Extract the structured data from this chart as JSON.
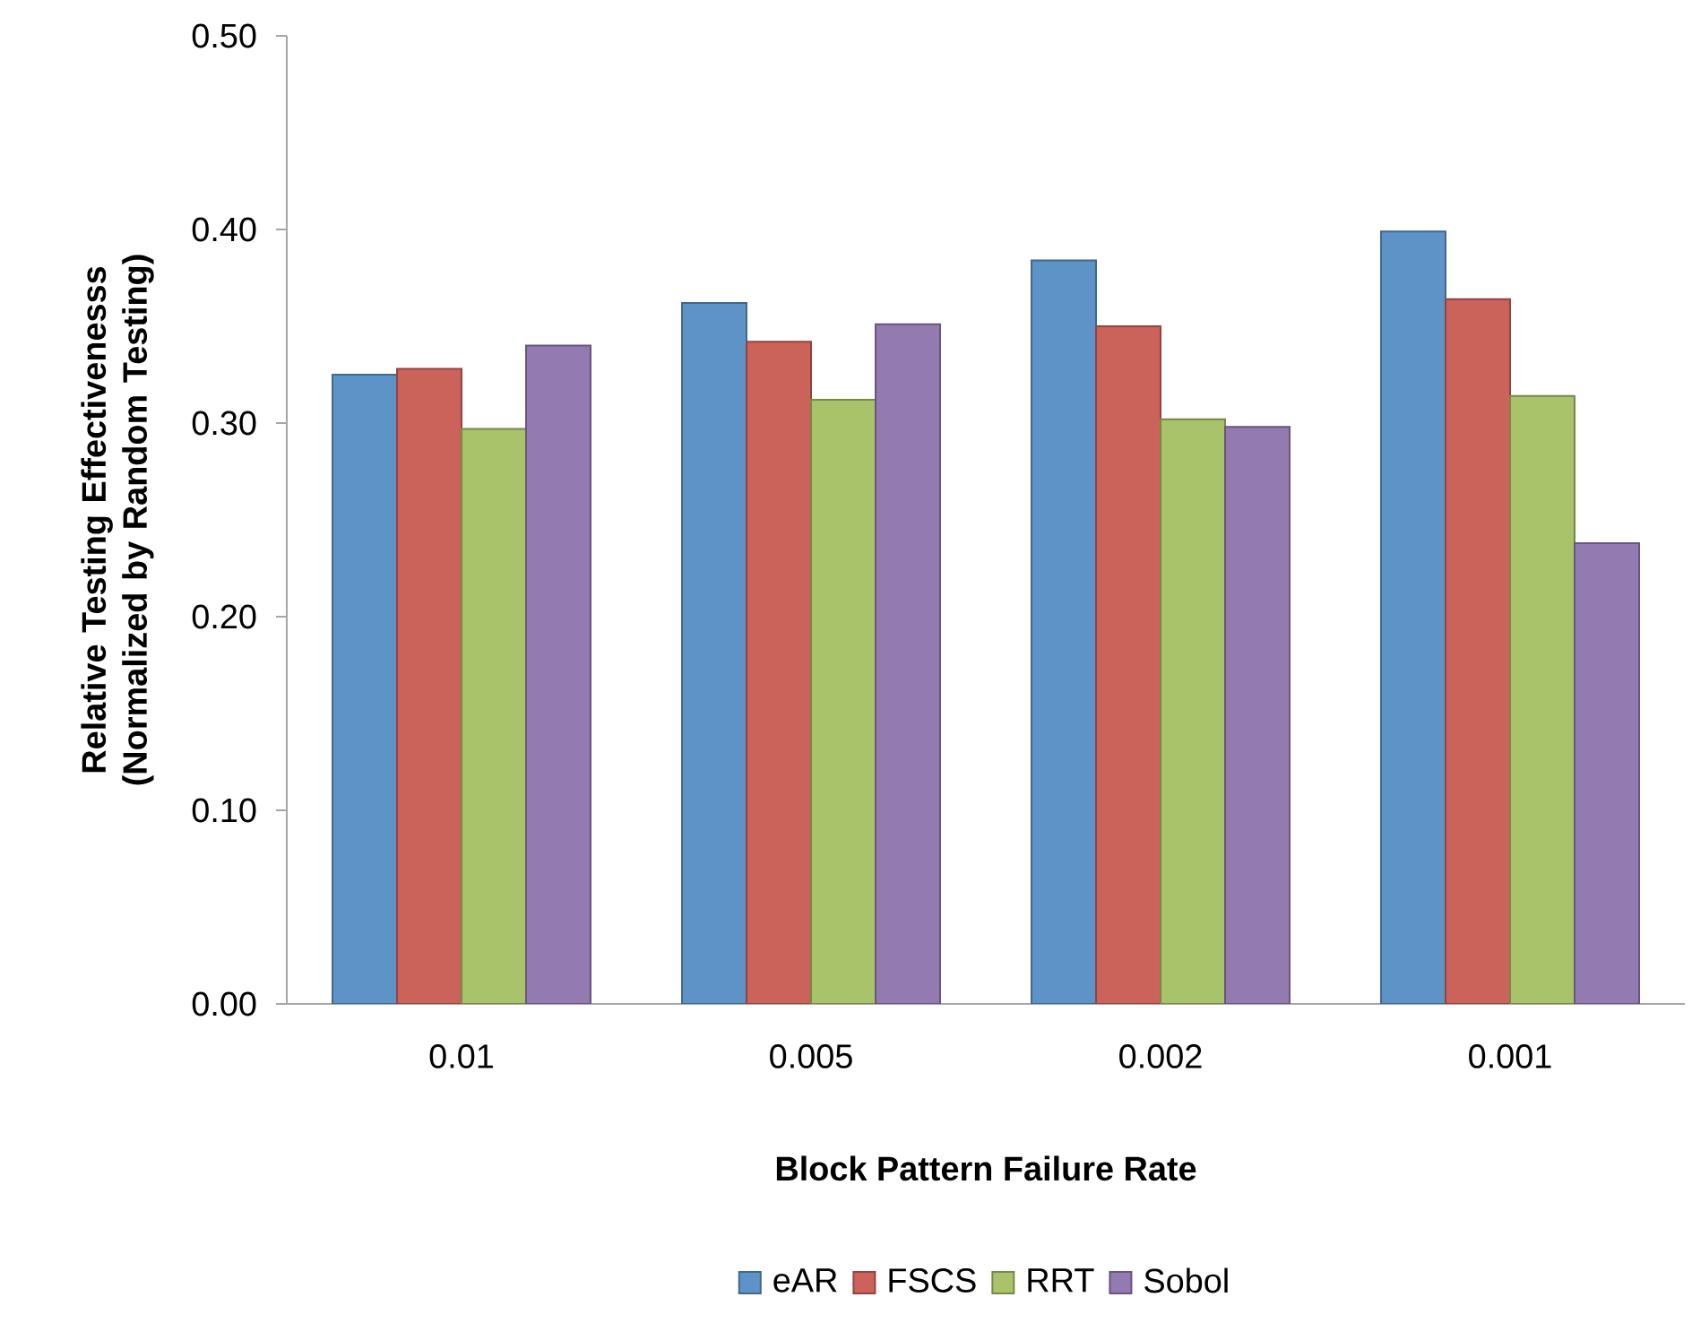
{
  "chart_data": {
    "type": "bar",
    "xlabel": "Block Pattern Failure Rate",
    "ylabel": "Relative Testing Effectivenesss (Normalized by Random Testing)",
    "categories": [
      "0.01",
      "0.005",
      "0.002",
      "0.001"
    ],
    "series": [
      {
        "name": "eAR",
        "color": "#5e93c8",
        "values": [
          0.325,
          0.362,
          0.384,
          0.399
        ]
      },
      {
        "name": "FSCS",
        "color": "#cc635b",
        "values": [
          0.328,
          0.342,
          0.35,
          0.364
        ]
      },
      {
        "name": "RRT",
        "color": "#a9c36a",
        "values": [
          0.297,
          0.312,
          0.302,
          0.314
        ]
      },
      {
        "name": "Sobol",
        "color": "#937bb1",
        "values": [
          0.34,
          0.351,
          0.298,
          0.238
        ]
      }
    ],
    "ylim": [
      0,
      0.5
    ],
    "yticks": [
      {
        "value": 0,
        "label": "0.00"
      },
      {
        "value": 0.1,
        "label": "0.10"
      },
      {
        "value": 0.2,
        "label": "0.20"
      },
      {
        "value": 0.3,
        "label": "0.30"
      },
      {
        "value": 0.4,
        "label": "0.40"
      },
      {
        "value": 0.5,
        "label": "0.50"
      }
    ],
    "legend": "bottom"
  }
}
